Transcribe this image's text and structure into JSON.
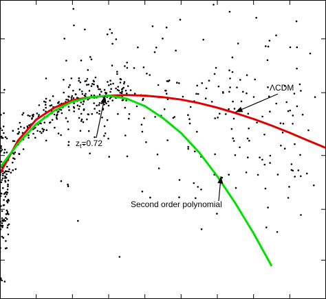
{
  "chart_data": {
    "type": "scatter",
    "title": "",
    "xlabel": "",
    "ylabel": "",
    "xlim": [
      0,
      1.8
    ],
    "ylim": [
      0,
      1
    ],
    "x_major_ticks": [
      0,
      0.2,
      0.4,
      0.6,
      0.8,
      1.0,
      1.2,
      1.4,
      1.6,
      1.8
    ],
    "y_major_ticks": [
      0.13,
      0.3,
      0.48,
      0.69,
      0.87
    ],
    "grid": false,
    "series": [
      {
        "kind": "points",
        "color": "#000000",
        "seed": 7,
        "count": 600
      },
      {
        "kind": "curve",
        "name": "ΛCDM",
        "color": "#e00000",
        "points": [
          [
            0,
            0.42
          ],
          [
            0.1,
            0.53
          ],
          [
            0.2,
            0.6
          ],
          [
            0.3,
            0.64
          ],
          [
            0.4,
            0.665
          ],
          [
            0.5,
            0.675
          ],
          [
            0.6,
            0.68
          ],
          [
            0.7,
            0.682
          ],
          [
            0.8,
            0.68
          ],
          [
            0.9,
            0.675
          ],
          [
            1.0,
            0.667
          ],
          [
            1.1,
            0.655
          ],
          [
            1.2,
            0.64
          ],
          [
            1.3,
            0.622
          ],
          [
            1.4,
            0.602
          ],
          [
            1.5,
            0.58
          ],
          [
            1.6,
            0.556
          ],
          [
            1.7,
            0.53
          ],
          [
            1.8,
            0.505
          ]
        ]
      },
      {
        "kind": "curve",
        "name": "Second order polynomial",
        "color": "#00e000",
        "points": [
          [
            0,
            0.44
          ],
          [
            0.1,
            0.52
          ],
          [
            0.2,
            0.585
          ],
          [
            0.3,
            0.63
          ],
          [
            0.4,
            0.66
          ],
          [
            0.5,
            0.675
          ],
          [
            0.6,
            0.68
          ],
          [
            0.7,
            0.67
          ],
          [
            0.8,
            0.645
          ],
          [
            0.9,
            0.605
          ],
          [
            1.0,
            0.555
          ],
          [
            1.1,
            0.49
          ],
          [
            1.2,
            0.41
          ],
          [
            1.3,
            0.32
          ],
          [
            1.4,
            0.22
          ],
          [
            1.5,
            0.11
          ]
        ]
      }
    ],
    "annotations": [
      {
        "text": "ΛCDM",
        "arrow_to": [
          1.3,
          0.625
        ],
        "anchor": "right"
      },
      {
        "text": "z",
        "subscript": "t",
        "suffix": "=0.72",
        "arrow_to": [
          0.58,
          0.68
        ],
        "anchor": "left"
      },
      {
        "text": "Second order polynomial",
        "arrow_to": [
          1.22,
          0.41
        ],
        "anchor": "left"
      }
    ]
  }
}
